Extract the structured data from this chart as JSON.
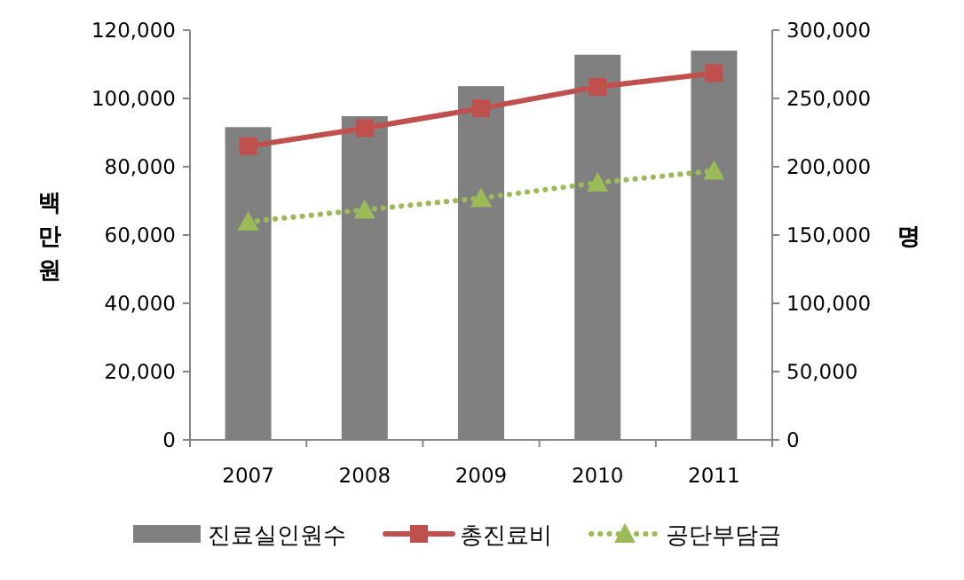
{
  "chart_data": {
    "type": "bar",
    "categories": [
      "2007",
      "2008",
      "2009",
      "2010",
      "2011"
    ],
    "series": [
      {
        "name": "진료실인원수",
        "axis": "y2",
        "color": "#808080",
        "values": [
          229000,
          237000,
          259000,
          282000,
          285000
        ]
      },
      {
        "name": "총진료비",
        "type": "line",
        "axis": "y",
        "color": "#c0504d",
        "marker": "square",
        "line_style": "solid",
        "values": [
          86000,
          91300,
          97100,
          103400,
          107400
        ]
      },
      {
        "name": "공단부담금",
        "type": "line",
        "axis": "y",
        "color": "#9bbb59",
        "marker": "triangle",
        "line_style": "dotted",
        "values": [
          63900,
          67400,
          70800,
          75300,
          78800
        ]
      }
    ],
    "ylabel": "백만원",
    "y2label": "명",
    "ylim": [
      0,
      120000
    ],
    "yticks": [
      0,
      {
        "value": 20000,
        "label": "20,000"
      },
      {
        "value": 40000,
        "label": "40,000"
      },
      {
        "value": 60000,
        "label": "60,000"
      },
      {
        "value": 80000,
        "label": "80,000"
      },
      {
        "value": 100000,
        "label": "100,000"
      },
      {
        "value": 120000,
        "label": "120,000"
      }
    ],
    "y2lim": [
      0,
      300000
    ],
    "y2ticks": [
      0,
      {
        "value": 50000,
        "label": "50,000"
      },
      {
        "value": 100000,
        "label": "100,000"
      },
      {
        "value": 150000,
        "label": "150,000"
      },
      {
        "value": 200000,
        "label": "200,000"
      },
      {
        "value": 250000,
        "label": "250,000"
      },
      {
        "value": 300000,
        "label": "300,000"
      }
    ],
    "legend": "bottom"
  }
}
